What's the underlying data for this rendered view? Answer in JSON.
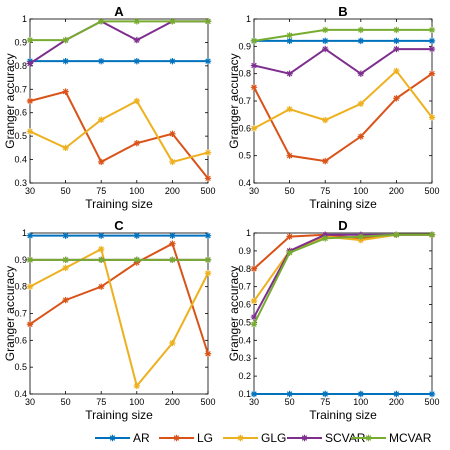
{
  "colors": {
    "AR": "#0072BD",
    "LG": "#D95319",
    "GLG": "#EDB120",
    "SCVAR": "#7E2F8E",
    "MCVAR": "#77AC30",
    "axis": "#000000",
    "grid": "#bfbfbf"
  },
  "legend": {
    "placement": "bottom-center",
    "entries": [
      "AR",
      "LG",
      "GLG",
      "SCVAR",
      "MCVAR"
    ]
  },
  "chart_data": [
    {
      "type": "line",
      "title": "A",
      "xlabel": "Training size",
      "ylabel": "Granger accuracy",
      "categories": [
        "30",
        "50",
        "75",
        "100",
        "200",
        "500"
      ],
      "ylim": [
        0.3,
        1
      ],
      "yticks": [
        "0.3",
        "0.4",
        "0.5",
        "0.6",
        "0.7",
        "0.8",
        "0.9",
        "1"
      ],
      "grid": false,
      "series": [
        {
          "name": "AR",
          "values": [
            0.82,
            0.82,
            0.82,
            0.82,
            0.82,
            0.82
          ]
        },
        {
          "name": "LG",
          "values": [
            0.65,
            0.69,
            0.39,
            0.47,
            0.51,
            0.32
          ]
        },
        {
          "name": "GLG",
          "values": [
            0.52,
            0.45,
            0.57,
            0.65,
            0.39,
            0.43
          ]
        },
        {
          "name": "SCVAR",
          "values": [
            0.81,
            0.91,
            0.99,
            0.91,
            0.99,
            0.99
          ]
        },
        {
          "name": "MCVAR",
          "values": [
            0.91,
            0.91,
            0.99,
            0.99,
            0.99,
            0.99
          ]
        }
      ]
    },
    {
      "type": "line",
      "title": "B",
      "xlabel": "Training size",
      "ylabel": "Granger accuracy",
      "categories": [
        "30",
        "50",
        "75",
        "100",
        "200",
        "500"
      ],
      "ylim": [
        0.4,
        1
      ],
      "yticks": [
        "0.4",
        "0.5",
        "0.6",
        "0.7",
        "0.8",
        "0.9",
        "1"
      ],
      "grid": false,
      "series": [
        {
          "name": "AR",
          "values": [
            0.92,
            0.92,
            0.92,
            0.92,
            0.92,
            0.92
          ]
        },
        {
          "name": "LG",
          "values": [
            0.75,
            0.5,
            0.48,
            0.57,
            0.71,
            0.8
          ]
        },
        {
          "name": "GLG",
          "values": [
            0.6,
            0.67,
            0.63,
            0.69,
            0.81,
            0.64
          ]
        },
        {
          "name": "SCVAR",
          "values": [
            0.83,
            0.8,
            0.89,
            0.8,
            0.89,
            0.89
          ]
        },
        {
          "name": "MCVAR",
          "values": [
            0.92,
            0.94,
            0.96,
            0.96,
            0.96,
            0.96
          ]
        }
      ]
    },
    {
      "type": "line",
      "title": "C",
      "xlabel": "Training size",
      "ylabel": "Granger accuracy",
      "categories": [
        "30",
        "50",
        "75",
        "100",
        "200",
        "500"
      ],
      "ylim": [
        0.4,
        1
      ],
      "yticks": [
        "0.4",
        "0.5",
        "0.6",
        "0.7",
        "0.8",
        "0.9",
        "1"
      ],
      "grid": false,
      "series": [
        {
          "name": "AR",
          "values": [
            0.99,
            0.99,
            0.99,
            0.99,
            0.99,
            0.99
          ]
        },
        {
          "name": "LG",
          "values": [
            0.66,
            0.75,
            0.8,
            0.89,
            0.96,
            0.55
          ]
        },
        {
          "name": "GLG",
          "values": [
            0.8,
            0.87,
            0.94,
            0.43,
            0.59,
            0.85
          ]
        },
        {
          "name": "SCVAR",
          "values": [
            0.9,
            0.9,
            0.9,
            0.9,
            0.9,
            0.9
          ]
        },
        {
          "name": "MCVAR",
          "values": [
            0.9,
            0.9,
            0.9,
            0.9,
            0.9,
            0.9
          ]
        }
      ]
    },
    {
      "type": "line",
      "title": "D",
      "xlabel": "Training size",
      "ylabel": "Granger accuracy",
      "categories": [
        "30",
        "50",
        "75",
        "100",
        "200",
        "500"
      ],
      "ylim": [
        0.1,
        1
      ],
      "yticks": [
        "0.1",
        "0.2",
        "0.3",
        "0.4",
        "0.5",
        "0.6",
        "0.7",
        "0.8",
        "0.9",
        "1"
      ],
      "grid": false,
      "series": [
        {
          "name": "AR",
          "values": [
            0.1,
            0.1,
            0.1,
            0.1,
            0.1,
            0.1
          ]
        },
        {
          "name": "LG",
          "values": [
            0.8,
            0.98,
            0.99,
            0.97,
            0.99,
            0.99
          ]
        },
        {
          "name": "GLG",
          "values": [
            0.62,
            0.9,
            0.98,
            0.96,
            0.99,
            0.99
          ]
        },
        {
          "name": "SCVAR",
          "values": [
            0.53,
            0.9,
            0.99,
            0.99,
            0.99,
            0.99
          ]
        },
        {
          "name": "MCVAR",
          "values": [
            0.49,
            0.89,
            0.97,
            0.98,
            0.99,
            0.99
          ]
        }
      ]
    }
  ]
}
